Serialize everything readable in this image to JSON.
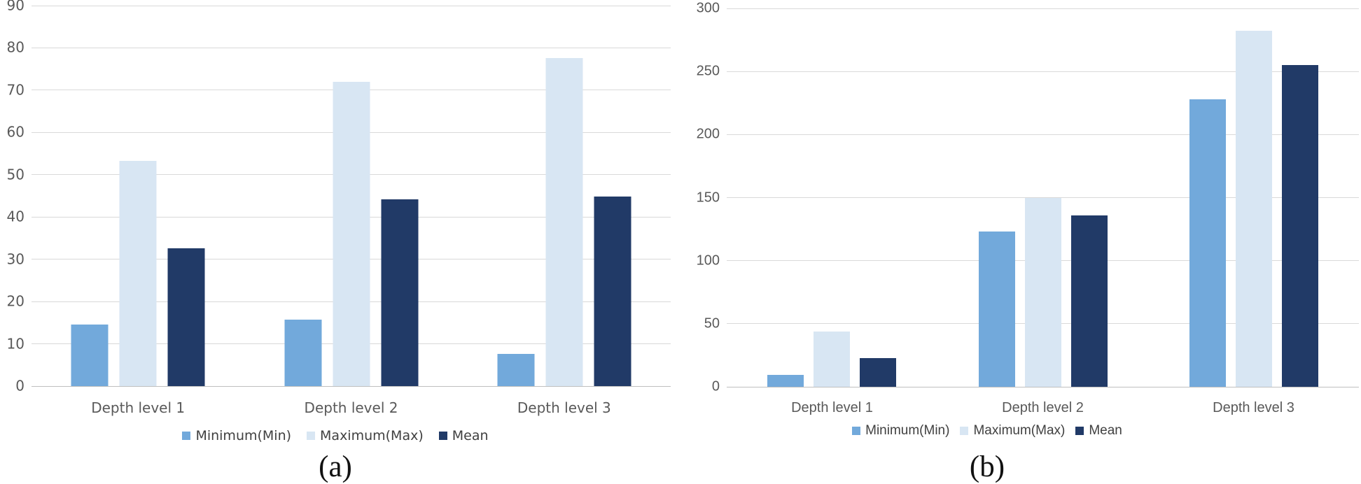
{
  "chart_data": [
    {
      "id": "a",
      "type": "bar",
      "caption": "(a)",
      "title": "",
      "xlabel": "",
      "ylabel": "",
      "categories": [
        "Depth level 1",
        "Depth level 2",
        "Depth level 3"
      ],
      "series": [
        {
          "name": "Minimum(Min)",
          "color": "#72A9DB",
          "values": [
            14.5,
            15.7,
            7.6
          ]
        },
        {
          "name": "Maximum(Max)",
          "color": "#D8E6F3",
          "values": [
            53.3,
            72.0,
            77.6
          ]
        },
        {
          "name": "Mean",
          "color": "#213A67",
          "values": [
            32.6,
            44.2,
            44.8
          ]
        }
      ],
      "ylim": [
        0,
        90
      ],
      "ytick_step": 10,
      "grid": true,
      "legend_position": "bottom"
    },
    {
      "id": "b",
      "type": "bar",
      "caption": "(b)",
      "title": "",
      "xlabel": "",
      "ylabel": "",
      "categories": [
        "Depth level 1",
        "Depth level 2",
        "Depth level 3"
      ],
      "series": [
        {
          "name": "Minimum(Min)",
          "color": "#72A9DB",
          "values": [
            9.5,
            123,
            228
          ]
        },
        {
          "name": "Maximum(Max)",
          "color": "#D8E6F3",
          "values": [
            44,
            150,
            282
          ]
        },
        {
          "name": "Mean",
          "color": "#213A67",
          "values": [
            23,
            136,
            255
          ]
        }
      ],
      "ylim": [
        0,
        300
      ],
      "ytick_step": 50,
      "grid": true,
      "legend_position": "bottom"
    }
  ],
  "colors": {
    "gridline": "#D9D9D9",
    "axis_line": "#BFBFBF",
    "tick_text": "#595959"
  }
}
